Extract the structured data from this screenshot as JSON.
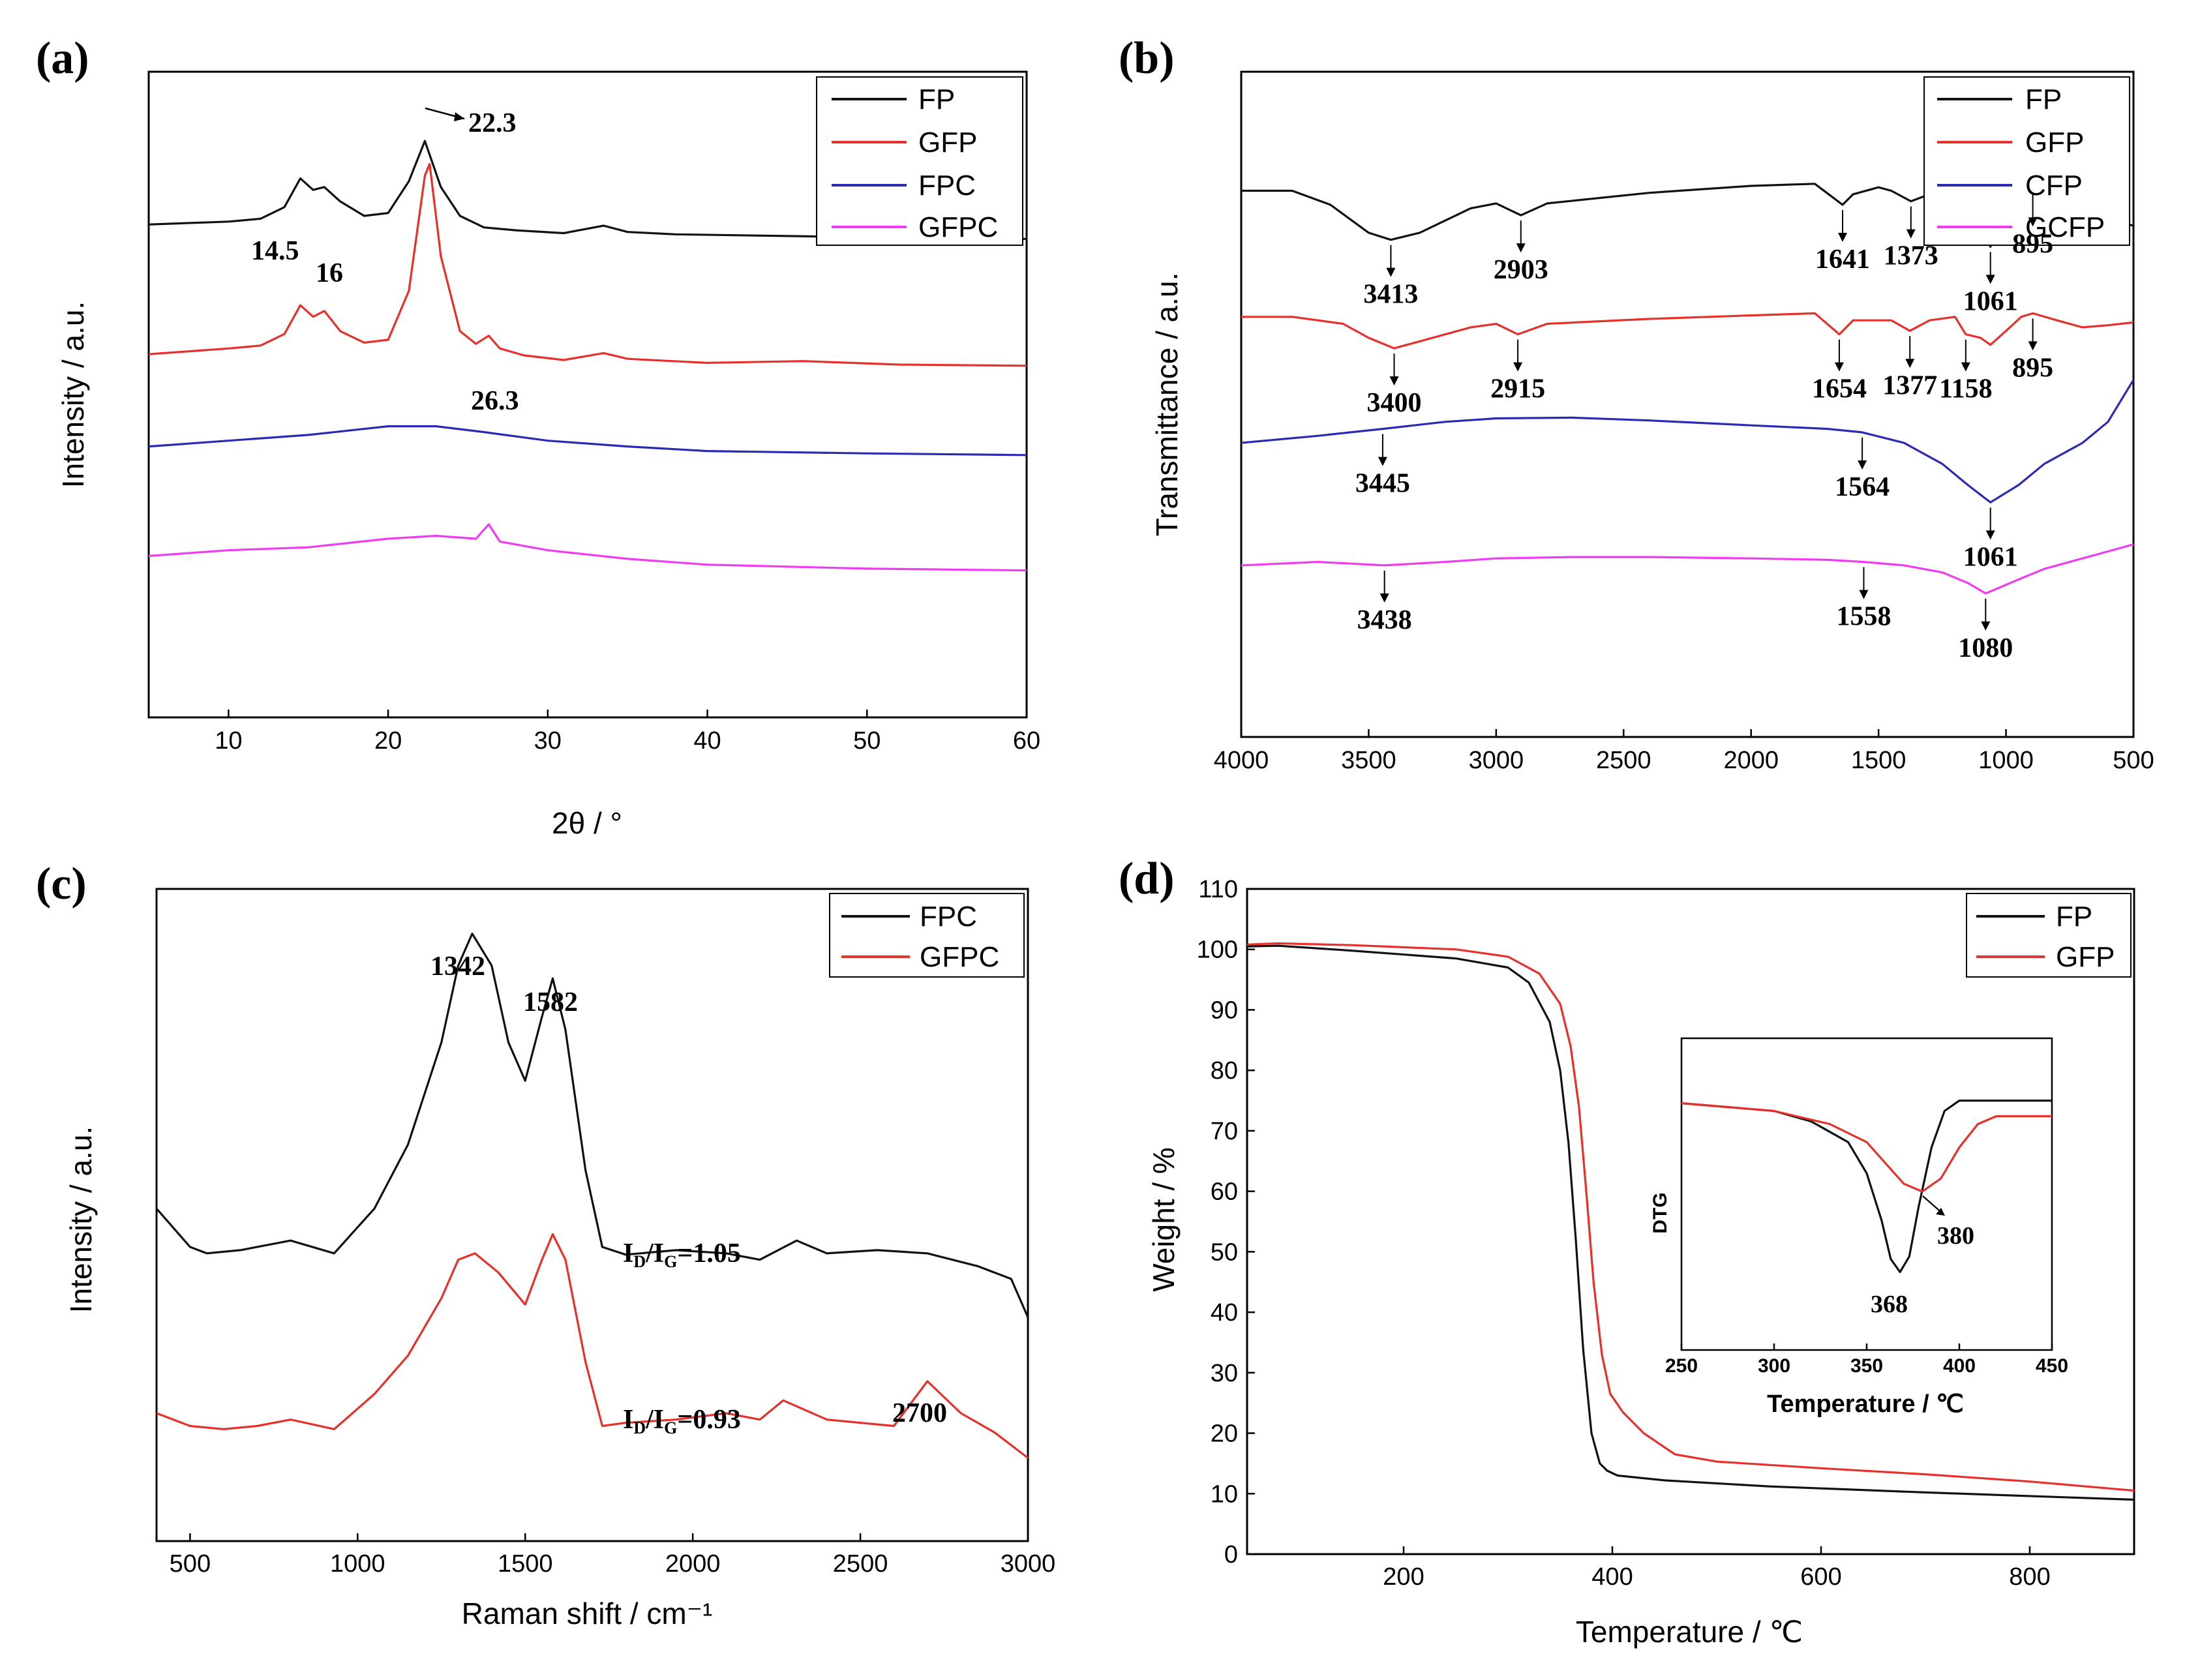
{
  "colors": {
    "black": "#111111",
    "red": "#e8302a",
    "blue": "#2a2ab4",
    "magenta": "#f03cf0",
    "red_tga": "#d83a3a"
  },
  "chart_data": [
    {
      "id": "a",
      "panel_label": "(a)",
      "type": "line",
      "title": "",
      "xlabel": "2θ / °",
      "ylabel": "Intensity / a.u.",
      "xlim": [
        5,
        60
      ],
      "xticks": [
        "10",
        "20",
        "30",
        "40",
        "50",
        "60"
      ],
      "legend": {
        "placement": "top-right",
        "entries": [
          "FP",
          "GFP",
          "FPC",
          "GFPC"
        ]
      },
      "series": [
        {
          "name": "FP",
          "color": "black",
          "x": [
            5,
            10,
            12,
            13.5,
            14.5,
            15.3,
            16,
            17,
            18.5,
            20,
            21.3,
            22.3,
            23.3,
            24.5,
            26,
            28,
            31,
            33.5,
            35,
            38,
            45,
            52,
            60
          ],
          "y": [
            0.855,
            0.86,
            0.865,
            0.885,
            0.935,
            0.915,
            0.92,
            0.895,
            0.87,
            0.875,
            0.93,
            1.0,
            0.92,
            0.87,
            0.85,
            0.845,
            0.84,
            0.853,
            0.842,
            0.838,
            0.835,
            0.832,
            0.83
          ]
        },
        {
          "name": "GFP",
          "color": "red",
          "x": [
            5,
            10,
            12,
            13.5,
            14.5,
            15.3,
            16,
            17,
            18.5,
            20,
            21.3,
            22.3,
            22.6,
            23.3,
            24.5,
            25.5,
            26.3,
            27,
            28.5,
            31,
            33.5,
            35,
            40,
            46,
            52,
            60
          ],
          "y": [
            0.63,
            0.64,
            0.645,
            0.665,
            0.715,
            0.695,
            0.705,
            0.67,
            0.65,
            0.655,
            0.74,
            0.94,
            0.96,
            0.8,
            0.67,
            0.648,
            0.662,
            0.64,
            0.628,
            0.62,
            0.632,
            0.622,
            0.615,
            0.618,
            0.612,
            0.61
          ]
        },
        {
          "name": "FPC",
          "color": "blue",
          "x": [
            5,
            10,
            15,
            20,
            23,
            26,
            30,
            35,
            40,
            50,
            60
          ],
          "y": [
            0.47,
            0.48,
            0.49,
            0.505,
            0.505,
            0.495,
            0.48,
            0.47,
            0.462,
            0.458,
            0.455
          ]
        },
        {
          "name": "GFPC",
          "color": "magenta",
          "x": [
            5,
            10,
            15,
            20,
            23,
            25.5,
            26.3,
            27,
            30,
            35,
            40,
            50,
            60
          ],
          "y": [
            0.28,
            0.29,
            0.295,
            0.31,
            0.315,
            0.31,
            0.335,
            0.305,
            0.29,
            0.275,
            0.265,
            0.258,
            0.255
          ]
        }
      ],
      "annotations": [
        "14.5",
        "16",
        "22.3",
        "26.3"
      ]
    },
    {
      "id": "b",
      "panel_label": "(b)",
      "type": "line",
      "title": "",
      "xlabel": "",
      "ylabel": "Transmittance / a.u.",
      "xlim": [
        4000,
        500
      ],
      "xticks": [
        "4000",
        "3500",
        "3000",
        "2500",
        "2000",
        "1500",
        "1000",
        "500"
      ],
      "legend": {
        "placement": "top-right",
        "entries": [
          "FP",
          "GFP",
          "CFP",
          "GCFP"
        ]
      },
      "series": [
        {
          "name": "FP",
          "color": "black",
          "x": [
            4000,
            3800,
            3650,
            3500,
            3413,
            3300,
            3100,
            3000,
            2903,
            2800,
            2400,
            2000,
            1750,
            1641,
            1600,
            1500,
            1450,
            1373,
            1300,
            1200,
            1150,
            1100,
            1061,
            1000,
            940,
            895,
            800,
            700,
            600,
            500
          ],
          "y": [
            0.88,
            0.88,
            0.86,
            0.82,
            0.81,
            0.82,
            0.855,
            0.862,
            0.845,
            0.862,
            0.877,
            0.887,
            0.89,
            0.86,
            0.875,
            0.885,
            0.88,
            0.865,
            0.875,
            0.89,
            0.86,
            0.84,
            0.8,
            0.855,
            0.875,
            0.882,
            0.875,
            0.86,
            0.84,
            0.83
          ]
        },
        {
          "name": "GFP",
          "color": "red",
          "x": [
            4000,
            3800,
            3600,
            3500,
            3400,
            3300,
            3100,
            3000,
            2915,
            2800,
            2400,
            2000,
            1750,
            1654,
            1600,
            1450,
            1377,
            1300,
            1200,
            1158,
            1100,
            1061,
            1000,
            940,
            895,
            800,
            700,
            600,
            500
          ],
          "y": [
            0.7,
            0.7,
            0.69,
            0.67,
            0.655,
            0.665,
            0.685,
            0.69,
            0.675,
            0.69,
            0.697,
            0.702,
            0.705,
            0.675,
            0.695,
            0.695,
            0.68,
            0.695,
            0.7,
            0.675,
            0.67,
            0.66,
            0.68,
            0.7,
            0.705,
            0.695,
            0.685,
            0.688,
            0.692
          ]
        },
        {
          "name": "CFP",
          "color": "blue",
          "x": [
            4000,
            3700,
            3445,
            3200,
            3000,
            2700,
            2400,
            2000,
            1700,
            1564,
            1400,
            1250,
            1150,
            1061,
            950,
            850,
            700,
            600,
            500
          ],
          "y": [
            0.52,
            0.53,
            0.54,
            0.55,
            0.555,
            0.556,
            0.552,
            0.545,
            0.54,
            0.535,
            0.52,
            0.49,
            0.46,
            0.435,
            0.46,
            0.49,
            0.52,
            0.55,
            0.61
          ]
        },
        {
          "name": "GCFP",
          "color": "magenta",
          "x": [
            4000,
            3700,
            3438,
            3200,
            3000,
            2700,
            2400,
            2000,
            1700,
            1558,
            1400,
            1250,
            1150,
            1080,
            950,
            850,
            700,
            600,
            500
          ],
          "y": [
            0.345,
            0.35,
            0.345,
            0.35,
            0.355,
            0.357,
            0.357,
            0.355,
            0.353,
            0.35,
            0.345,
            0.335,
            0.32,
            0.305,
            0.325,
            0.34,
            0.355,
            0.365,
            0.375
          ]
        }
      ],
      "annotations": [
        "3413",
        "2903",
        "1641",
        "1373",
        "1061",
        "895",
        "3400",
        "2915",
        "1654",
        "1377",
        "1158",
        "895",
        "3445",
        "1564",
        "1061",
        "3438",
        "1558",
        "1080"
      ]
    },
    {
      "id": "c",
      "panel_label": "(c)",
      "type": "line",
      "title": "",
      "xlabel": "Raman shift / cm⁻¹",
      "ylabel": "Intensity / a.u.",
      "xlim": [
        400,
        3000
      ],
      "xticks": [
        "500",
        "1000",
        "1500",
        "2000",
        "2500",
        "3000"
      ],
      "legend": {
        "placement": "top-right",
        "entries": [
          "FPC",
          "GFPC"
        ]
      },
      "series": [
        {
          "name": "FPC",
          "color": "black",
          "x": [
            400,
            500,
            550,
            650,
            800,
            930,
            1050,
            1150,
            1250,
            1300,
            1342,
            1400,
            1450,
            1500,
            1550,
            1582,
            1620,
            1680,
            1730,
            1800,
            1950,
            2100,
            2200,
            2310,
            2400,
            2550,
            2700,
            2850,
            2950,
            3000
          ],
          "y": [
            0.52,
            0.46,
            0.45,
            0.455,
            0.47,
            0.45,
            0.52,
            0.62,
            0.78,
            0.9,
            0.95,
            0.9,
            0.78,
            0.72,
            0.82,
            0.88,
            0.8,
            0.58,
            0.46,
            0.448,
            0.455,
            0.45,
            0.44,
            0.47,
            0.45,
            0.455,
            0.45,
            0.43,
            0.41,
            0.35
          ]
        },
        {
          "name": "GFPC",
          "color": "red",
          "x": [
            400,
            500,
            600,
            700,
            800,
            930,
            1050,
            1150,
            1250,
            1300,
            1350,
            1420,
            1500,
            1550,
            1582,
            1620,
            1680,
            1730,
            1800,
            1950,
            2100,
            2200,
            2270,
            2400,
            2500,
            2600,
            2700,
            2800,
            2900,
            3000
          ],
          "y": [
            0.2,
            0.18,
            0.175,
            0.18,
            0.19,
            0.175,
            0.23,
            0.29,
            0.38,
            0.44,
            0.45,
            0.42,
            0.37,
            0.44,
            0.48,
            0.44,
            0.28,
            0.18,
            0.185,
            0.19,
            0.2,
            0.19,
            0.22,
            0.19,
            0.185,
            0.18,
            0.25,
            0.2,
            0.17,
            0.13
          ]
        }
      ],
      "annotations": [
        "1342",
        "1582",
        "2700"
      ],
      "ratios": [
        {
          "prefix": "I",
          "sub1": "D",
          "slash": "/I",
          "sub2": "G",
          "value": "=1.05"
        },
        {
          "prefix": "I",
          "sub1": "D",
          "slash": "/I",
          "sub2": "G",
          "value": "=0.93"
        }
      ]
    },
    {
      "id": "d",
      "panel_label": "(d)",
      "type": "line",
      "title": "",
      "xlabel": "Temperature / ℃",
      "ylabel": "Weight / %",
      "xlim": [
        50,
        900
      ],
      "ylim": [
        0,
        110
      ],
      "xticks": [
        "200",
        "400",
        "600",
        "800"
      ],
      "yticks": [
        "0",
        "10",
        "20",
        "30",
        "40",
        "50",
        "60",
        "70",
        "80",
        "90",
        "100",
        "110"
      ],
      "legend": {
        "placement": "top-right",
        "entries": [
          "FP",
          "GFP"
        ]
      },
      "series": [
        {
          "name": "FP",
          "color": "black",
          "x": [
            50,
            80,
            150,
            250,
            300,
            320,
            340,
            350,
            358,
            365,
            372,
            380,
            388,
            395,
            405,
            450,
            550,
            700,
            900
          ],
          "y": [
            100.5,
            100.6,
            99.8,
            98.5,
            97.0,
            94.5,
            88.0,
            80.0,
            68.0,
            52.0,
            34.0,
            20.0,
            15.0,
            13.8,
            13.0,
            12.2,
            11.2,
            10.2,
            9.0
          ]
        },
        {
          "name": "GFP",
          "color": "red",
          "x": [
            50,
            80,
            150,
            250,
            300,
            330,
            350,
            360,
            368,
            375,
            382,
            390,
            398,
            410,
            430,
            460,
            500,
            600,
            700,
            800,
            900
          ],
          "y": [
            100.8,
            101.0,
            100.7,
            100.0,
            98.8,
            96.0,
            91.0,
            84.0,
            74.0,
            60.0,
            45.0,
            33.0,
            26.5,
            23.5,
            20.0,
            16.5,
            15.3,
            14.2,
            13.2,
            12.0,
            10.5
          ]
        }
      ]
    },
    {
      "id": "d_inset",
      "type": "line",
      "title": "",
      "xlabel": "Temperature / ℃",
      "ylabel": "DTG",
      "xlim": [
        250,
        450
      ],
      "xticks": [
        "250",
        "300",
        "350",
        "400",
        "450"
      ],
      "series": [
        {
          "name": "FP",
          "color": "black",
          "x": [
            250,
            300,
            320,
            340,
            350,
            358,
            363,
            368,
            373,
            378,
            385,
            392,
            400,
            420,
            450
          ],
          "y": [
            0.95,
            0.92,
            0.88,
            0.8,
            0.68,
            0.5,
            0.35,
            0.3,
            0.36,
            0.55,
            0.78,
            0.92,
            0.96,
            0.96,
            0.96
          ]
        },
        {
          "name": "GFP",
          "color": "red",
          "x": [
            250,
            300,
            330,
            350,
            360,
            370,
            380,
            390,
            400,
            410,
            420,
            450
          ],
          "y": [
            0.95,
            0.92,
            0.87,
            0.8,
            0.72,
            0.64,
            0.61,
            0.66,
            0.78,
            0.87,
            0.9,
            0.9
          ]
        }
      ],
      "annotations": [
        "368",
        "380"
      ]
    }
  ]
}
